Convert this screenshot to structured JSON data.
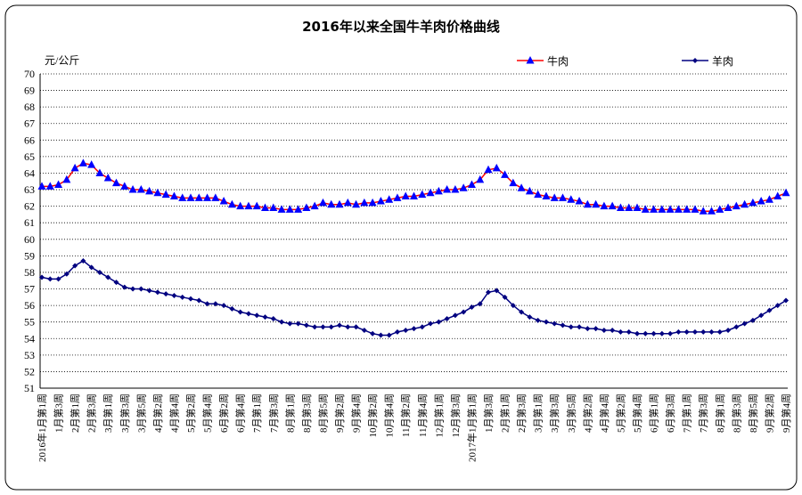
{
  "chart_data": {
    "type": "line",
    "title": "2016年以来全国牛羊肉价格曲线",
    "y_label": "元/公斤",
    "ylim": [
      51,
      70
    ],
    "yticks": [
      51,
      52,
      53,
      54,
      55,
      56,
      57,
      58,
      59,
      60,
      61,
      62,
      63,
      64,
      65,
      66,
      67,
      68,
      69,
      70
    ],
    "grid": true,
    "legend": "top",
    "categories": [
      "2016年1月第1周",
      null,
      "1月第3周",
      null,
      "2月第1周",
      null,
      "2月第3周",
      null,
      "3月第1周",
      null,
      "3月第3周",
      null,
      "3月第5周",
      null,
      "4月第2周",
      null,
      "4月第4周",
      null,
      "5月第2周",
      null,
      "5月第4周",
      null,
      "6月第2周",
      null,
      "6月第4周",
      null,
      "7月第1周",
      null,
      "7月第3周",
      null,
      "8月第1周",
      null,
      "8月第3周",
      null,
      "8月第5周",
      null,
      "9月第2周",
      null,
      "9月第4周",
      null,
      "10月第2周",
      null,
      "10月第4周",
      null,
      "11月第2周",
      null,
      "11月第4周",
      null,
      "12月第1周",
      null,
      "12月第3周",
      null,
      "2017年1月第1周",
      null,
      "1月第3周",
      null,
      "2月第1周",
      null,
      "2月第3周",
      null,
      "3月第1周",
      null,
      "3月第3周",
      null,
      "3月第5周",
      null,
      "4月第2周",
      null,
      "4月第4周",
      null,
      "5月第2周",
      null,
      "5月第4周",
      null,
      "6月第1周",
      null,
      "6月第3周",
      null,
      "7月第1周",
      null,
      "7月第3周",
      null,
      "8月第1周",
      null,
      "8月第3周",
      null,
      "8月第5周",
      null,
      "9月第2周",
      null,
      "9月第4周"
    ],
    "series": [
      {
        "name": "牛肉",
        "color": "#ff0000",
        "marker_color": "#0000ff",
        "marker": "triangle",
        "values": [
          63.2,
          63.2,
          63.3,
          63.6,
          64.3,
          64.6,
          64.5,
          64.0,
          63.7,
          63.4,
          63.2,
          63.0,
          63.0,
          62.9,
          62.8,
          62.7,
          62.6,
          62.5,
          62.5,
          62.5,
          62.5,
          62.5,
          62.3,
          62.1,
          62.0,
          62.0,
          62.0,
          61.9,
          61.9,
          61.8,
          61.8,
          61.8,
          61.9,
          62.0,
          62.2,
          62.1,
          62.1,
          62.2,
          62.1,
          62.2,
          62.2,
          62.3,
          62.4,
          62.5,
          62.6,
          62.6,
          62.7,
          62.8,
          62.9,
          63.0,
          63.0,
          63.1,
          63.3,
          63.6,
          64.2,
          64.3,
          63.9,
          63.4,
          63.1,
          62.9,
          62.7,
          62.6,
          62.5,
          62.5,
          62.4,
          62.3,
          62.1,
          62.1,
          62.0,
          62.0,
          61.9,
          61.9,
          61.9,
          61.8,
          61.8,
          61.8,
          61.8,
          61.8,
          61.8,
          61.8,
          61.7,
          61.7,
          61.8,
          61.9,
          62.0,
          62.1,
          62.2,
          62.3,
          62.4,
          62.6,
          62.8
        ]
      },
      {
        "name": "羊肉",
        "color": "#000080",
        "marker_color": "#000080",
        "marker": "diamond",
        "values": [
          57.7,
          57.6,
          57.6,
          57.9,
          58.4,
          58.7,
          58.3,
          58.0,
          57.7,
          57.4,
          57.1,
          57.0,
          57.0,
          56.9,
          56.8,
          56.7,
          56.6,
          56.5,
          56.4,
          56.3,
          56.1,
          56.1,
          56.0,
          55.8,
          55.6,
          55.5,
          55.4,
          55.3,
          55.2,
          55.0,
          54.9,
          54.9,
          54.8,
          54.7,
          54.7,
          54.7,
          54.8,
          54.7,
          54.7,
          54.5,
          54.3,
          54.2,
          54.2,
          54.4,
          54.5,
          54.6,
          54.7,
          54.9,
          55.0,
          55.2,
          55.4,
          55.6,
          55.9,
          56.1,
          56.8,
          56.9,
          56.5,
          56.0,
          55.6,
          55.3,
          55.1,
          55.0,
          54.9,
          54.8,
          54.7,
          54.7,
          54.6,
          54.6,
          54.5,
          54.5,
          54.4,
          54.4,
          54.3,
          54.3,
          54.3,
          54.3,
          54.3,
          54.4,
          54.4,
          54.4,
          54.4,
          54.4,
          54.4,
          54.5,
          54.7,
          54.9,
          55.1,
          55.4,
          55.7,
          56.0,
          56.3
        ]
      }
    ]
  }
}
